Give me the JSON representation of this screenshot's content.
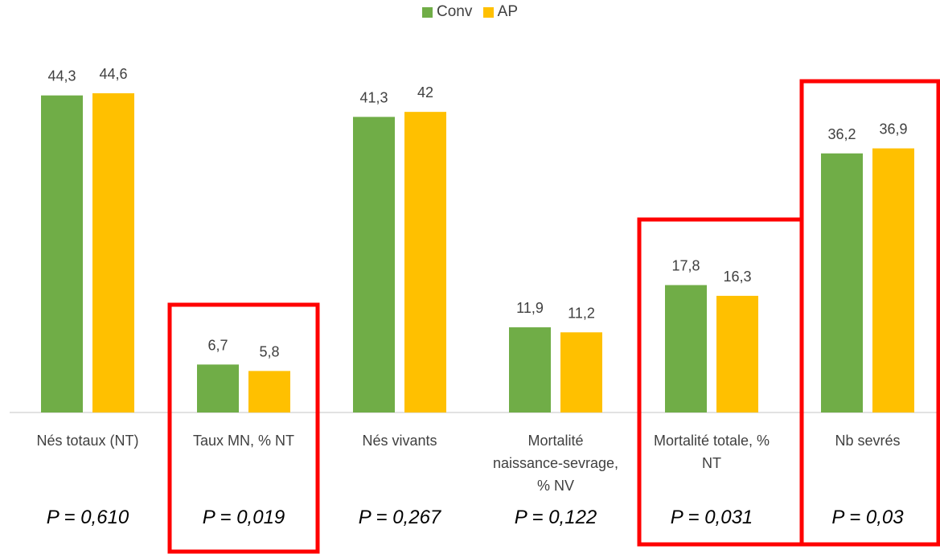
{
  "chart_data": {
    "type": "bar",
    "categories": [
      [
        "Nés totaux (NT)"
      ],
      [
        "Taux MN, % NT"
      ],
      [
        "Nés vivants"
      ],
      [
        "Mortalité",
        "naissance-sevrage,",
        "% NV"
      ],
      [
        "Mortalité totale, %",
        "NT"
      ],
      [
        "Nb sevrés"
      ]
    ],
    "series": [
      {
        "name": "Conv",
        "color": "#70AD47",
        "values": [
          44.3,
          6.7,
          41.3,
          11.9,
          17.8,
          36.2
        ],
        "labels": [
          "44,3",
          "6,7",
          "41,3",
          "11,9",
          "17,8",
          "36,2"
        ]
      },
      {
        "name": "AP",
        "color": "#FFC000",
        "values": [
          44.6,
          5.8,
          42,
          11.2,
          16.3,
          36.9
        ],
        "labels": [
          "44,6",
          "5,8",
          "42",
          "11,2",
          "16,3",
          "36,9"
        ]
      }
    ],
    "p_values": [
      "P = 0,610",
      "P = 0,019",
      "P = 0,267",
      "P = 0,122",
      "P = 0,031",
      "P = 0,03"
    ],
    "highlighted_categories": [
      1,
      4,
      5
    ],
    "highlight_color": "#FF0000",
    "legend_position": "top-center",
    "ylim": [
      0,
      44.6
    ],
    "grid": false
  }
}
